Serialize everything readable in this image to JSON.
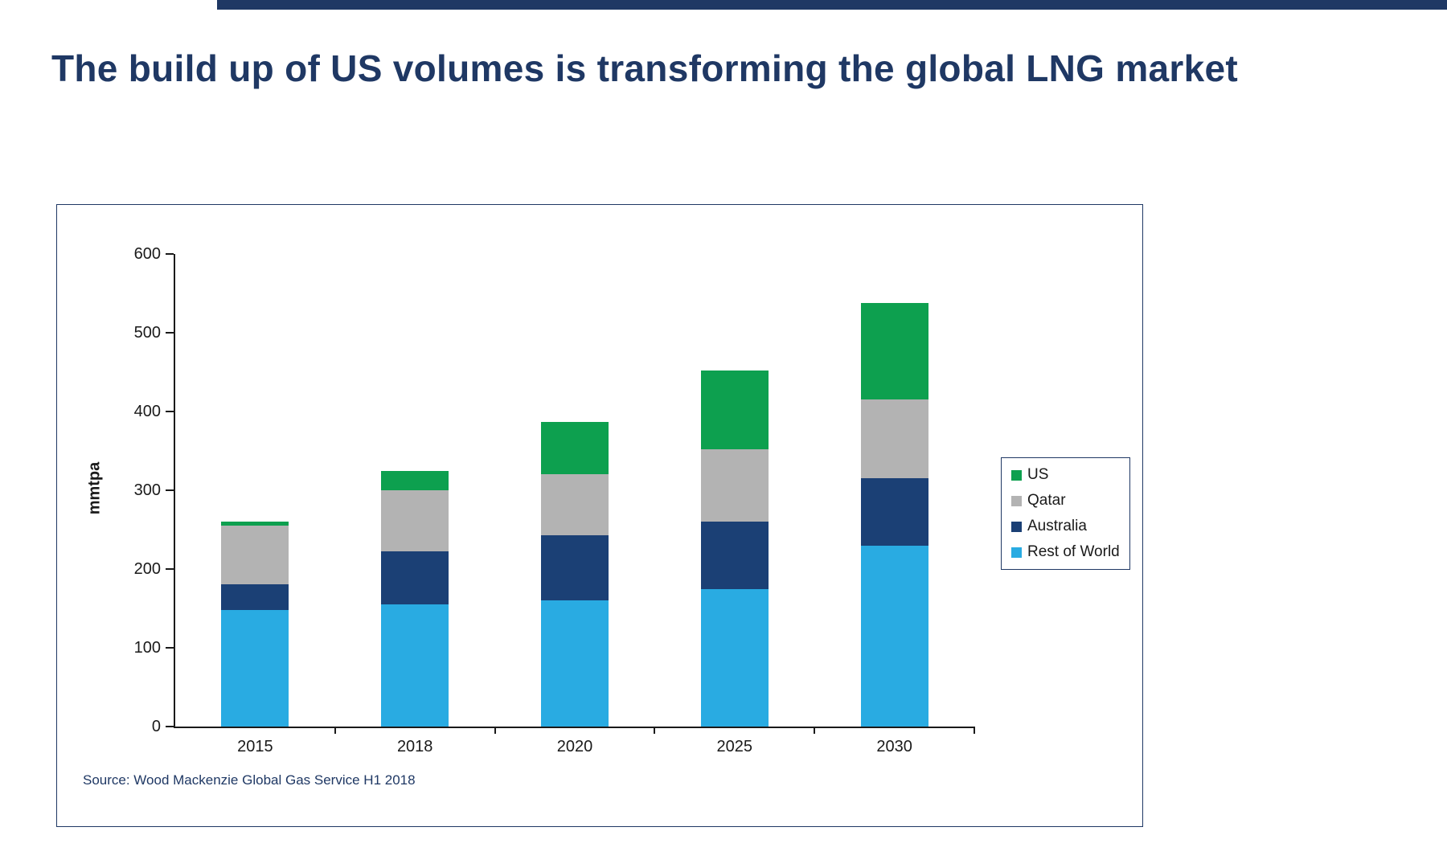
{
  "accent_color": "#1F3864",
  "title": "The build up of US volumes is transforming the global LNG market",
  "source": "Source: Wood Mackenzie Global Gas Service H1 2018",
  "chart_data": {
    "type": "bar",
    "stacked": true,
    "title": "",
    "xlabel": "",
    "ylabel": "mmtpa",
    "ylim": [
      0,
      600
    ],
    "ytick_step": 100,
    "grid": false,
    "legend_position": "right",
    "categories": [
      "2015",
      "2018",
      "2020",
      "2025",
      "2030"
    ],
    "series": [
      {
        "name": "Rest of World",
        "color": "#29ABE2",
        "values": [
          148,
          155,
          160,
          175,
          230
        ]
      },
      {
        "name": "Australia",
        "color": "#1B4075",
        "values": [
          33,
          67,
          83,
          85,
          85
        ]
      },
      {
        "name": "Qatar",
        "color": "#B3B3B3",
        "values": [
          74,
          78,
          77,
          92,
          100
        ]
      },
      {
        "name": "US",
        "color": "#0DA04F",
        "values": [
          5,
          25,
          67,
          100,
          123
        ]
      }
    ],
    "totals": [
      260,
      325,
      387,
      452,
      538
    ],
    "legend_order": [
      "US",
      "Qatar",
      "Australia",
      "Rest of World"
    ]
  }
}
